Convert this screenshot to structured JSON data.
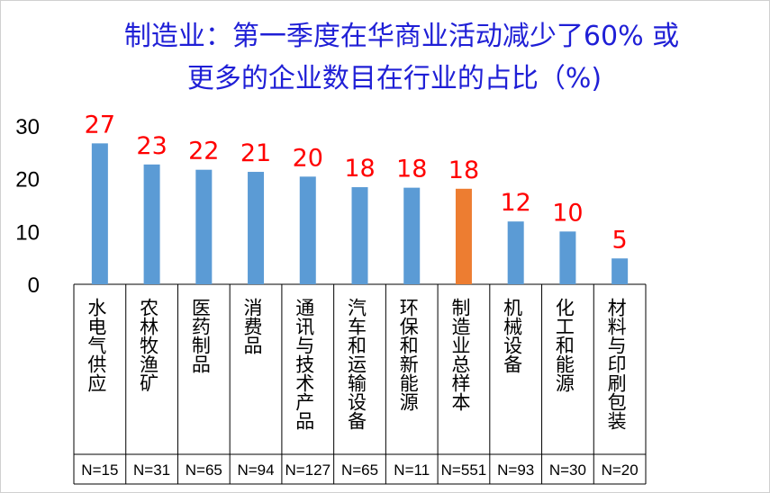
{
  "chart_data": {
    "type": "bar",
    "title_lines": [
      "制造业：第一季度在华商业活动减少了60% 或",
      "更多的企业数目在行业的占比（%)"
    ],
    "categories": [
      "水电气供应",
      "农林牧渔矿",
      "医药制品",
      "消费品",
      "通讯与技术产品",
      "汽车和运输设备",
      "环保和新能源",
      "制造业总样本",
      "机械设备",
      "化工和能源",
      "材料与印刷包装"
    ],
    "sample_sizes": [
      "N=15",
      "N=31",
      "N=65",
      "N=94",
      "N=127",
      "N=65",
      "N=11",
      "N=551",
      "N=93",
      "N=30",
      "N=20"
    ],
    "values": [
      27,
      23,
      22,
      21,
      20,
      18,
      18,
      18,
      12,
      10,
      5
    ],
    "data_labels": [
      "27",
      "23",
      "22",
      "21",
      "20",
      "18",
      "18",
      "18",
      "12",
      "10",
      "5"
    ],
    "bar_values": [
      26.7,
      22.7,
      21.7,
      21.3,
      20.4,
      18.4,
      18.3,
      18.1,
      11.9,
      10.0,
      4.9
    ],
    "highlight_index": 7,
    "colors": {
      "bar": "#5b9bd5",
      "highlight": "#ed7d31",
      "data_label": "#ff0000",
      "title": "#1f1fd6"
    },
    "yticks": [
      "0",
      "10",
      "20",
      "30"
    ],
    "ylim": [
      0,
      30
    ],
    "xlabel": "",
    "ylabel": "",
    "grid": false,
    "legend": "none"
  }
}
